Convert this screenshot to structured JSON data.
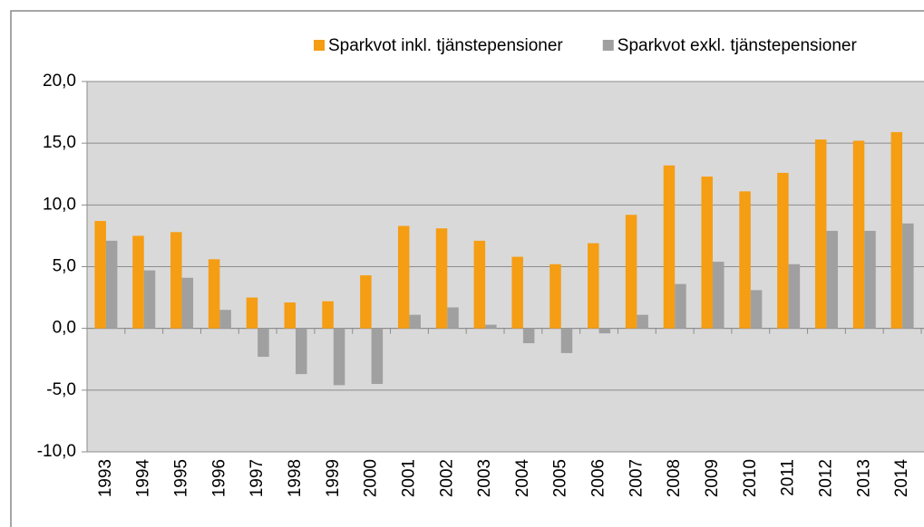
{
  "chart_data": {
    "type": "bar",
    "categories": [
      "1993",
      "1994",
      "1995",
      "1996",
      "1997",
      "1998",
      "1999",
      "2000",
      "2001",
      "2002",
      "2003",
      "2004",
      "2005",
      "2006",
      "2007",
      "2008",
      "2009",
      "2010",
      "2011",
      "2012",
      "2013",
      "2014"
    ],
    "series": [
      {
        "name": "Sparkvot inkl. tjänstepensioner",
        "color": "#f59d13",
        "values": [
          8.7,
          7.5,
          7.8,
          5.6,
          2.5,
          2.1,
          2.2,
          4.3,
          8.3,
          8.1,
          7.1,
          5.8,
          5.2,
          6.9,
          9.2,
          13.2,
          12.3,
          11.1,
          12.6,
          15.3,
          15.2,
          15.9
        ]
      },
      {
        "name": "Sparkvot exkl. tjänstepensioner",
        "color": "#a0a0a0",
        "values": [
          7.1,
          4.7,
          4.1,
          1.5,
          -2.3,
          -3.7,
          -4.6,
          -4.5,
          1.1,
          1.7,
          0.3,
          -1.2,
          -2.0,
          -0.4,
          1.1,
          3.6,
          5.4,
          3.1,
          5.2,
          7.9,
          7.9,
          8.5
        ]
      }
    ],
    "ylim": [
      -10,
      20
    ],
    "yticks": [
      {
        "value": -10,
        "label": "-10,0"
      },
      {
        "value": -5,
        "label": "-5,0"
      },
      {
        "value": 0,
        "label": "0,0"
      },
      {
        "value": 5,
        "label": "5,0"
      },
      {
        "value": 10,
        "label": "10,0"
      },
      {
        "value": 15,
        "label": "15,0"
      },
      {
        "value": 20,
        "label": "20,0"
      }
    ],
    "grid": true,
    "legend": "top"
  }
}
